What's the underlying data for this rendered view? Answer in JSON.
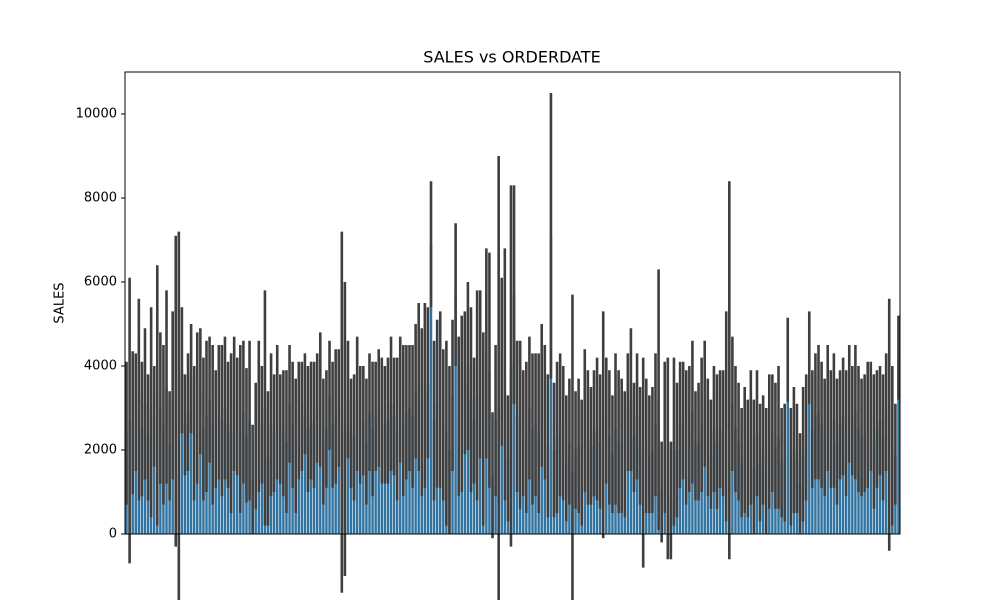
{
  "chart_data": {
    "type": "bar",
    "title": "SALES vs ORDERDATE",
    "y_label": "SALES",
    "categories": [
      null,
      null,
      null,
      null,
      null,
      null,
      null,
      null,
      null,
      null,
      null,
      null,
      null,
      null,
      null,
      null,
      null,
      null,
      null,
      null,
      null,
      null,
      null,
      null,
      null,
      null,
      null,
      null,
      null,
      null,
      null,
      null,
      null,
      null,
      null,
      null,
      null,
      null,
      null,
      null,
      null,
      null,
      null,
      null,
      null,
      null,
      null,
      null,
      null,
      null,
      null,
      null,
      null,
      null,
      null,
      null,
      null,
      null,
      null,
      null,
      null,
      null,
      null,
      null,
      null,
      null,
      null,
      null,
      null,
      null,
      null,
      null,
      null,
      null,
      null,
      null,
      null,
      null,
      null,
      null,
      null,
      null,
      null,
      null,
      null,
      null,
      null,
      null,
      null,
      null,
      null,
      null,
      null,
      null,
      null,
      null,
      null,
      null,
      null,
      null,
      null,
      null,
      null,
      null,
      null,
      null,
      null,
      null,
      null,
      null,
      null,
      null,
      null,
      null,
      null,
      null,
      null,
      null,
      null,
      null,
      null,
      null,
      null,
      null,
      null,
      null,
      null,
      null,
      null,
      null,
      null,
      null,
      null,
      null,
      null,
      null,
      null,
      null,
      null,
      null,
      null,
      null,
      null,
      null,
      null,
      null,
      null,
      null,
      null,
      null,
      null,
      null,
      null,
      null,
      null,
      null,
      null,
      null,
      null,
      null,
      null,
      null,
      null,
      null,
      null,
      null,
      null,
      null,
      null,
      null,
      null,
      null,
      null,
      null,
      null,
      null,
      null,
      null,
      null,
      null,
      null,
      null,
      null,
      null,
      null,
      null,
      null,
      null,
      null,
      null,
      null,
      null,
      null,
      null,
      null,
      null,
      null,
      null,
      null,
      null,
      null,
      null,
      null,
      null,
      null,
      null,
      null,
      null,
      null,
      null,
      null,
      null,
      null,
      null,
      null,
      null,
      null,
      null,
      null,
      null,
      null,
      null,
      null,
      null,
      null,
      null,
      null,
      null,
      null,
      null,
      null,
      null,
      null,
      null,
      null,
      null,
      null,
      null,
      null,
      null,
      null,
      null,
      null,
      null,
      null,
      null,
      null,
      null,
      null,
      null,
      null,
      null
    ],
    "values": [
      2400,
      2700,
      2650,
      2900,
      3200,
      2500,
      3100,
      2300,
      2900,
      2800,
      3300,
      3000,
      2600,
      3500,
      2100,
      3300,
      3400,
      2500,
      3900,
      2600,
      2900,
      3700,
      2400,
      3000,
      3400,
      2500,
      2800,
      3200,
      2600,
      2500,
      2900,
      2700,
      3000,
      2600,
      2400,
      3100,
      2800,
      2500,
      2900,
      2350,
      2700,
      1300,
      2100,
      2800,
      2600,
      3000,
      1800,
      2600,
      2400,
      2900,
      2500,
      2400,
      2200,
      3100,
      2600,
      2100,
      2700,
      2800,
      3100,
      2500,
      2700,
      2600,
      3000,
      3200,
      2200,
      2500,
      3300,
      2600,
      2800,
      3000,
      2900,
      2500,
      3200,
      2400,
      2300,
      3100,
      2600,
      2700,
      2200,
      2900,
      2500,
      2800,
      3000,
      2700,
      2600,
      2700,
      3100,
      2800,
      2500,
      3200,
      2700,
      2900,
      3000,
      2800,
      3400,
      3500,
      2900,
      3300,
      3600,
      6900,
      2700,
      3100,
      3200,
      2600,
      2400,
      2000,
      3300,
      5700,
      2800,
      3100,
      3600,
      4000,
      3200,
      2700,
      3300,
      3800,
      2500,
      4300,
      3900,
      1400,
      2700,
      3000,
      4100,
      3800,
      1800,
      4000,
      5700,
      2800,
      2600,
      2400,
      2300,
      3000,
      2500,
      2600,
      2400,
      3300,
      2900,
      2100,
      7100,
      2000,
      2300,
      2600,
      2400,
      1800,
      2200,
      1500,
      2000,
      2100,
      1700,
      2700,
      2300,
      2100,
      2400,
      2500,
      2200,
      2600,
      2700,
      2300,
      1900,
      2500,
      2200,
      2100,
      1900,
      2900,
      3200,
      2300,
      2800,
      2100,
      1700,
      2100,
      1900,
      2000,
      2600,
      3200,
      1000,
      2300,
      1800,
      800,
      2200,
      2000,
      2600,
      2700,
      2300,
      2500,
      2900,
      2100,
      2200,
      2600,
      3100,
      2300,
      1900,
      2500,
      2200,
      2500,
      2400,
      2800,
      3900,
      3100,
      2500,
      2200,
      1700,
      2000,
      1800,
      2300,
      1600,
      2400,
      1700,
      2000,
      1500,
      2200,
      2400,
      2100,
      2300,
      1700,
      1700,
      4150,
      1600,
      2000,
      1800,
      1200,
      1900,
      2300,
      4200,
      2500,
      2800,
      2900,
      2600,
      2300,
      3000,
      2500,
      2700,
      2200,
      2600,
      2800,
      2400,
      3100,
      2700,
      2900,
      2500,
      2300,
      2400,
      2600,
      2800,
      2200,
      2500,
      2700,
      2300,
      2900,
      2600,
      2100,
      1900,
      4200
    ],
    "errors": [
      1700,
      3400,
      1700,
      1400,
      2400,
      1600,
      1800,
      1500,
      2500,
      1200,
      3100,
      1800,
      1900,
      2300,
      1300,
      2000,
      3700,
      4700,
      1500,
      1200,
      1400,
      1300,
      1600,
      1800,
      1500,
      1700,
      1800,
      1500,
      1900,
      1400,
      1600,
      1800,
      1700,
      1500,
      1900,
      1600,
      1400,
      2000,
      1700,
      1600,
      1900,
      1300,
      1500,
      1800,
      1400,
      2800,
      1600,
      1700,
      1400,
      1600,
      1300,
      1500,
      1700,
      1400,
      1500,
      1600,
      1400,
      1300,
      1200,
      1500,
      1400,
      1500,
      1300,
      1600,
      1500,
      1400,
      1300,
      1500,
      1600,
      1400,
      4300,
      3500,
      1400,
      1300,
      1500,
      1600,
      1400,
      1300,
      1500,
      1400,
      1600,
      1300,
      1400,
      1500,
      1400,
      1500,
      1600,
      1400,
      1700,
      1500,
      1800,
      1600,
      1500,
      1700,
      1600,
      2000,
      2000,
      2200,
      1800,
      1500,
      1900,
      2000,
      2100,
      1800,
      2200,
      2000,
      1800,
      1700,
      1900,
      2100,
      1700,
      2000,
      2200,
      1500,
      2500,
      2000,
      2300,
      2500,
      2800,
      1500,
      1800,
      6000,
      2000,
      3000,
      1500,
      4300,
      2600,
      1800,
      2000,
      1500,
      1800,
      1700,
      1800,
      1700,
      1900,
      1700,
      1600,
      1700,
      3400,
      1600,
      1800,
      1700,
      1600,
      1500,
      1500,
      4200,
      1400,
      1600,
      1500,
      1700,
      1600,
      1400,
      1500,
      1700,
      1600,
      2700,
      1500,
      1600,
      1400,
      1800,
      1700,
      1600,
      1500,
      1400,
      1700,
      1300,
      1500,
      1400,
      2500,
      1600,
      1400,
      1500,
      1700,
      3100,
      1200,
      1800,
      2400,
      1400,
      2000,
      1600,
      1500,
      1400,
      1600,
      1500,
      1700,
      1300,
      1400,
      1600,
      1500,
      1400,
      1300,
      1500,
      1600,
      1400,
      1500,
      2500,
      4500,
      1600,
      1500,
      1400,
      1300,
      1500,
      1400,
      1600,
      1600,
      1500,
      1400,
      1300,
      1500,
      1600,
      1400,
      1500,
      1700,
      1300,
      1400,
      1000,
      1400,
      1500,
      1300,
      1200,
      1600,
      1500,
      1100,
      1400,
      1500,
      1600,
      1500,
      1400,
      1500,
      1400,
      1600,
      1500,
      1300,
      1400,
      1500,
      1400,
      1300,
      1600,
      1500,
      1400,
      1400,
      1500,
      1300,
      1600,
      1400,
      1300,
      1500,
      1400,
      3000,
      1900,
      1200,
      1000
    ],
    "color": "#3274a1",
    "error_color": "#3f3f3f",
    "ylim": [
      0,
      11000
    ],
    "yticks": [
      0,
      2000,
      4000,
      6000,
      8000,
      10000
    ]
  }
}
